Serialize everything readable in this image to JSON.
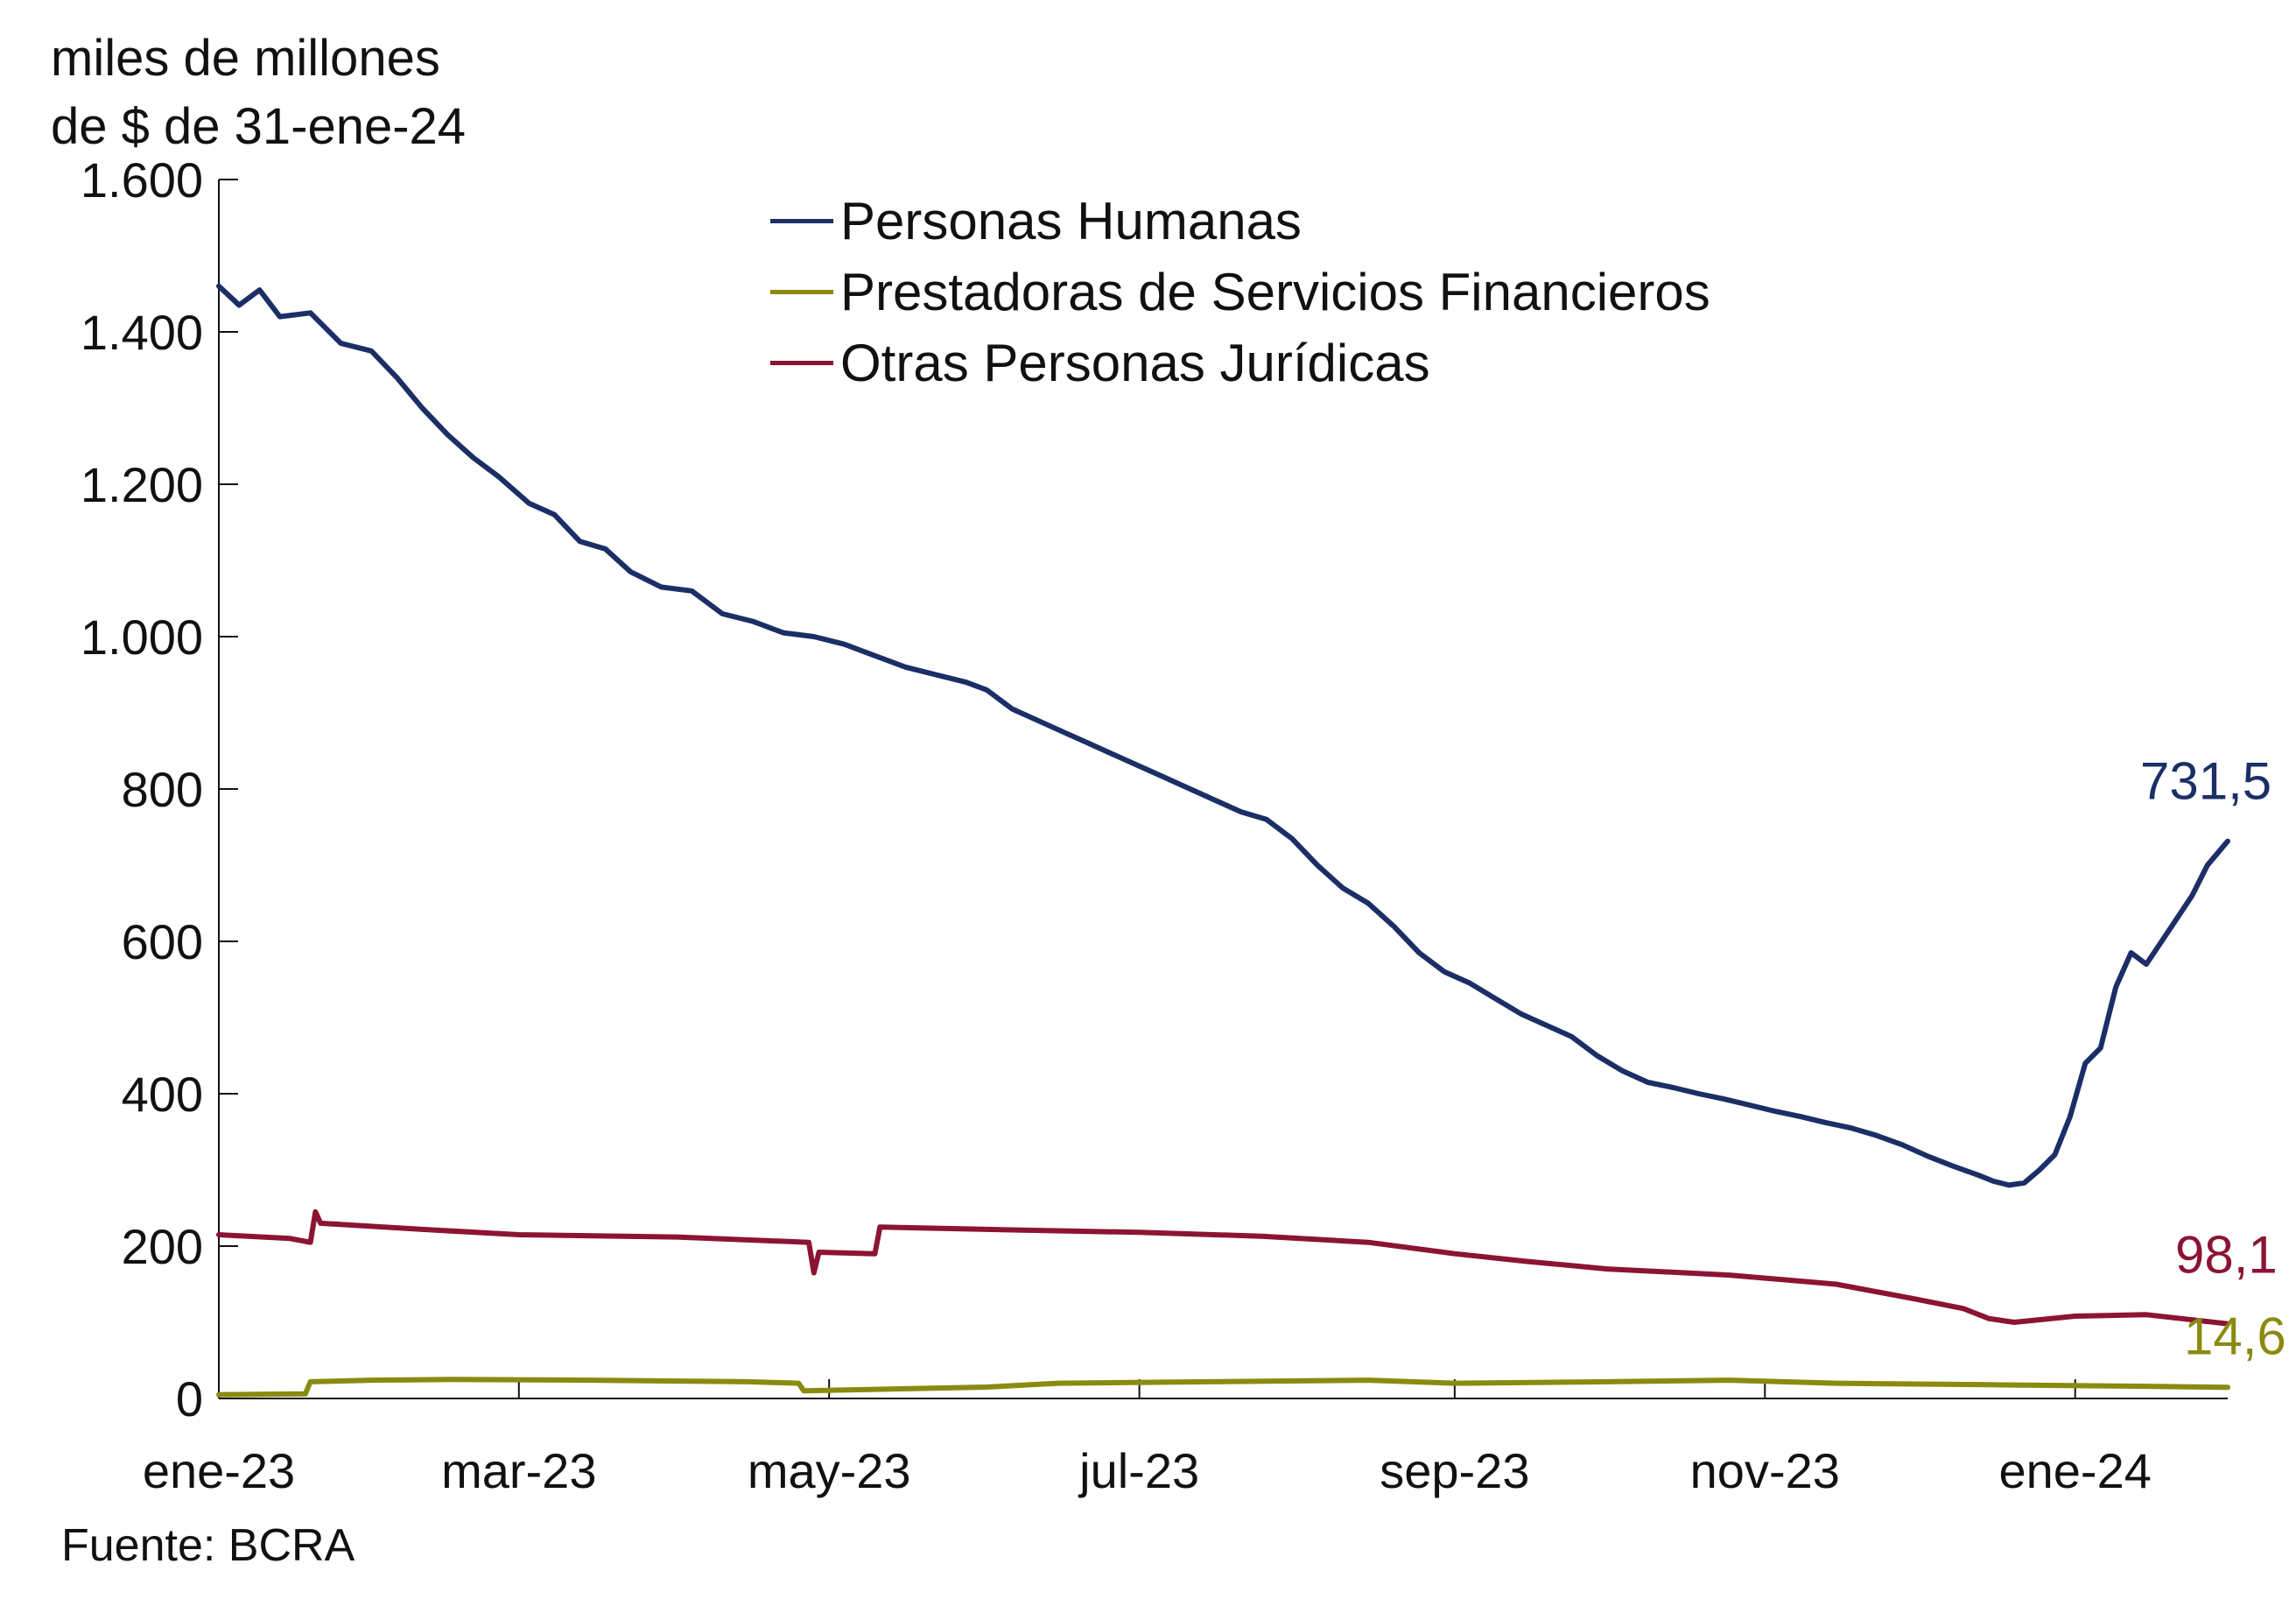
{
  "chart_data": {
    "type": "line",
    "ylabel": "miles de millones de $ de 31-ene-24",
    "ylabel_lines": [
      "miles de millones",
      "de $ de 31-ene-24"
    ],
    "ylim": [
      0,
      1600
    ],
    "yticks": [
      0,
      200,
      400,
      600,
      800,
      1000,
      1200,
      1400,
      1600
    ],
    "ytick_labels": [
      "0",
      "200",
      "400",
      "600",
      "800",
      "1.000",
      "1.200",
      "1.400",
      "1.600"
    ],
    "xlim": [
      "2023-01-01",
      "2024-01-31"
    ],
    "xticks": [
      "2023-01-01",
      "2023-03-01",
      "2023-05-01",
      "2023-07-01",
      "2023-09-01",
      "2023-11-01",
      "2024-01-01"
    ],
    "xtick_labels": [
      "ene-23",
      "mar-23",
      "may-23",
      "jul-23",
      "sep-23",
      "nov-23",
      "ene-24"
    ],
    "grid": false,
    "legend_position": "top-center",
    "source": "Fuente: BCRA",
    "series": [
      {
        "name": "Personas Humanas",
        "color": "#1b2f66",
        "end_label": "731,5",
        "points": [
          [
            "2023-01-01",
            1460
          ],
          [
            "2023-01-05",
            1435
          ],
          [
            "2023-01-09",
            1455
          ],
          [
            "2023-01-13",
            1420
          ],
          [
            "2023-01-19",
            1425
          ],
          [
            "2023-01-25",
            1385
          ],
          [
            "2023-01-31",
            1375
          ],
          [
            "2023-02-05",
            1340
          ],
          [
            "2023-02-10",
            1300
          ],
          [
            "2023-02-15",
            1265
          ],
          [
            "2023-02-20",
            1235
          ],
          [
            "2023-02-25",
            1210
          ],
          [
            "2023-03-03",
            1175
          ],
          [
            "2023-03-08",
            1160
          ],
          [
            "2023-03-13",
            1125
          ],
          [
            "2023-03-18",
            1115
          ],
          [
            "2023-03-23",
            1085
          ],
          [
            "2023-03-29",
            1065
          ],
          [
            "2023-04-04",
            1060
          ],
          [
            "2023-04-10",
            1030
          ],
          [
            "2023-04-16",
            1020
          ],
          [
            "2023-04-22",
            1005
          ],
          [
            "2023-04-28",
            1000
          ],
          [
            "2023-05-04",
            990
          ],
          [
            "2023-05-10",
            975
          ],
          [
            "2023-05-16",
            960
          ],
          [
            "2023-05-22",
            950
          ],
          [
            "2023-05-28",
            940
          ],
          [
            "2023-06-01",
            930
          ],
          [
            "2023-06-06",
            905
          ],
          [
            "2023-06-11",
            890
          ],
          [
            "2023-06-16",
            875
          ],
          [
            "2023-06-21",
            860
          ],
          [
            "2023-06-26",
            845
          ],
          [
            "2023-07-01",
            830
          ],
          [
            "2023-07-06",
            815
          ],
          [
            "2023-07-11",
            800
          ],
          [
            "2023-07-16",
            785
          ],
          [
            "2023-07-21",
            770
          ],
          [
            "2023-07-26",
            760
          ],
          [
            "2023-07-31",
            735
          ],
          [
            "2023-08-05",
            700
          ],
          [
            "2023-08-10",
            670
          ],
          [
            "2023-08-15",
            650
          ],
          [
            "2023-08-20",
            620
          ],
          [
            "2023-08-25",
            585
          ],
          [
            "2023-08-30",
            560
          ],
          [
            "2023-09-04",
            545
          ],
          [
            "2023-09-09",
            525
          ],
          [
            "2023-09-14",
            505
          ],
          [
            "2023-09-19",
            490
          ],
          [
            "2023-09-24",
            475
          ],
          [
            "2023-09-29",
            450
          ],
          [
            "2023-10-04",
            430
          ],
          [
            "2023-10-09",
            415
          ],
          [
            "2023-10-14",
            408
          ],
          [
            "2023-10-19",
            400
          ],
          [
            "2023-10-24",
            393
          ],
          [
            "2023-10-29",
            385
          ],
          [
            "2023-11-03",
            377
          ],
          [
            "2023-11-08",
            370
          ],
          [
            "2023-11-13",
            362
          ],
          [
            "2023-11-18",
            355
          ],
          [
            "2023-11-23",
            345
          ],
          [
            "2023-11-28",
            333
          ],
          [
            "2023-12-03",
            318
          ],
          [
            "2023-12-08",
            305
          ],
          [
            "2023-12-13",
            293
          ],
          [
            "2023-12-16",
            285
          ],
          [
            "2023-12-19",
            280
          ],
          [
            "2023-12-22",
            283
          ],
          [
            "2023-12-25",
            300
          ],
          [
            "2023-12-28",
            320
          ],
          [
            "2023-12-31",
            370
          ],
          [
            "2024-01-03",
            440
          ],
          [
            "2024-01-06",
            460
          ],
          [
            "2024-01-09",
            540
          ],
          [
            "2024-01-12",
            585
          ],
          [
            "2024-01-15",
            570
          ],
          [
            "2024-01-18",
            600
          ],
          [
            "2024-01-21",
            630
          ],
          [
            "2024-01-24",
            660
          ],
          [
            "2024-01-27",
            700
          ],
          [
            "2024-01-31",
            731.5
          ]
        ]
      },
      {
        "name": "Prestadoras de Servicios Financieros",
        "color": "#8a8a10",
        "end_label": "14,6",
        "points": [
          [
            "2023-01-01",
            5
          ],
          [
            "2023-01-18",
            6
          ],
          [
            "2023-01-19",
            22
          ],
          [
            "2023-01-31",
            24
          ],
          [
            "2023-02-15",
            25
          ],
          [
            "2023-03-15",
            24
          ],
          [
            "2023-04-15",
            22
          ],
          [
            "2023-04-25",
            20
          ],
          [
            "2023-04-26",
            10
          ],
          [
            "2023-05-10",
            12
          ],
          [
            "2023-06-01",
            15
          ],
          [
            "2023-06-15",
            20
          ],
          [
            "2023-07-15",
            22
          ],
          [
            "2023-08-15",
            24
          ],
          [
            "2023-09-01",
            20
          ],
          [
            "2023-10-01",
            22
          ],
          [
            "2023-10-25",
            24
          ],
          [
            "2023-11-15",
            20
          ],
          [
            "2023-12-15",
            18
          ],
          [
            "2024-01-15",
            16
          ],
          [
            "2024-01-31",
            14.6
          ]
        ]
      },
      {
        "name": "Otras Personas Jurídicas",
        "color": "#8c1433",
        "end_label": "98,1",
        "points": [
          [
            "2023-01-01",
            215
          ],
          [
            "2023-01-15",
            210
          ],
          [
            "2023-01-19",
            205
          ],
          [
            "2023-01-20",
            245
          ],
          [
            "2023-01-21",
            230
          ],
          [
            "2023-02-10",
            222
          ],
          [
            "2023-03-01",
            215
          ],
          [
            "2023-04-01",
            212
          ],
          [
            "2023-04-27",
            205
          ],
          [
            "2023-04-28",
            165
          ],
          [
            "2023-04-29",
            192
          ],
          [
            "2023-05-10",
            190
          ],
          [
            "2023-05-11",
            225
          ],
          [
            "2023-06-01",
            222
          ],
          [
            "2023-07-01",
            218
          ],
          [
            "2023-07-25",
            213
          ],
          [
            "2023-08-15",
            205
          ],
          [
            "2023-09-01",
            190
          ],
          [
            "2023-09-15",
            180
          ],
          [
            "2023-10-01",
            170
          ],
          [
            "2023-10-25",
            162
          ],
          [
            "2023-11-15",
            150
          ],
          [
            "2023-12-01",
            130
          ],
          [
            "2023-12-10",
            118
          ],
          [
            "2023-12-15",
            105
          ],
          [
            "2023-12-20",
            100
          ],
          [
            "2024-01-01",
            108
          ],
          [
            "2024-01-15",
            110
          ],
          [
            "2024-01-31",
            98.1
          ]
        ]
      }
    ]
  }
}
